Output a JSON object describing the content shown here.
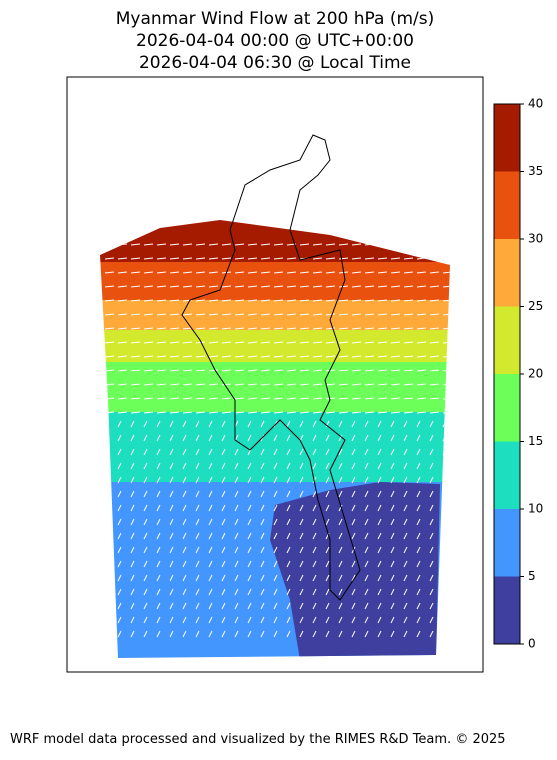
{
  "title": [
    "Myanmar Wind Flow at 200 hPa (m/s)",
    "2026-04-04 00:00 @ UTC+00:00",
    "2026-04-04 06:30 @ Local Time"
  ],
  "colorbar": {
    "ticks": [
      0,
      5,
      10,
      15,
      20,
      25,
      30,
      35,
      40
    ],
    "colors": [
      "#3e3f9e",
      "#4396fe",
      "#1ddfc0",
      "#6cff5a",
      "#d2e92e",
      "#fea93a",
      "#e9510f",
      "#a51b00"
    ]
  },
  "footer": "WRF model data processed and visualized by the RIMES R&D Team. © 2025"
}
